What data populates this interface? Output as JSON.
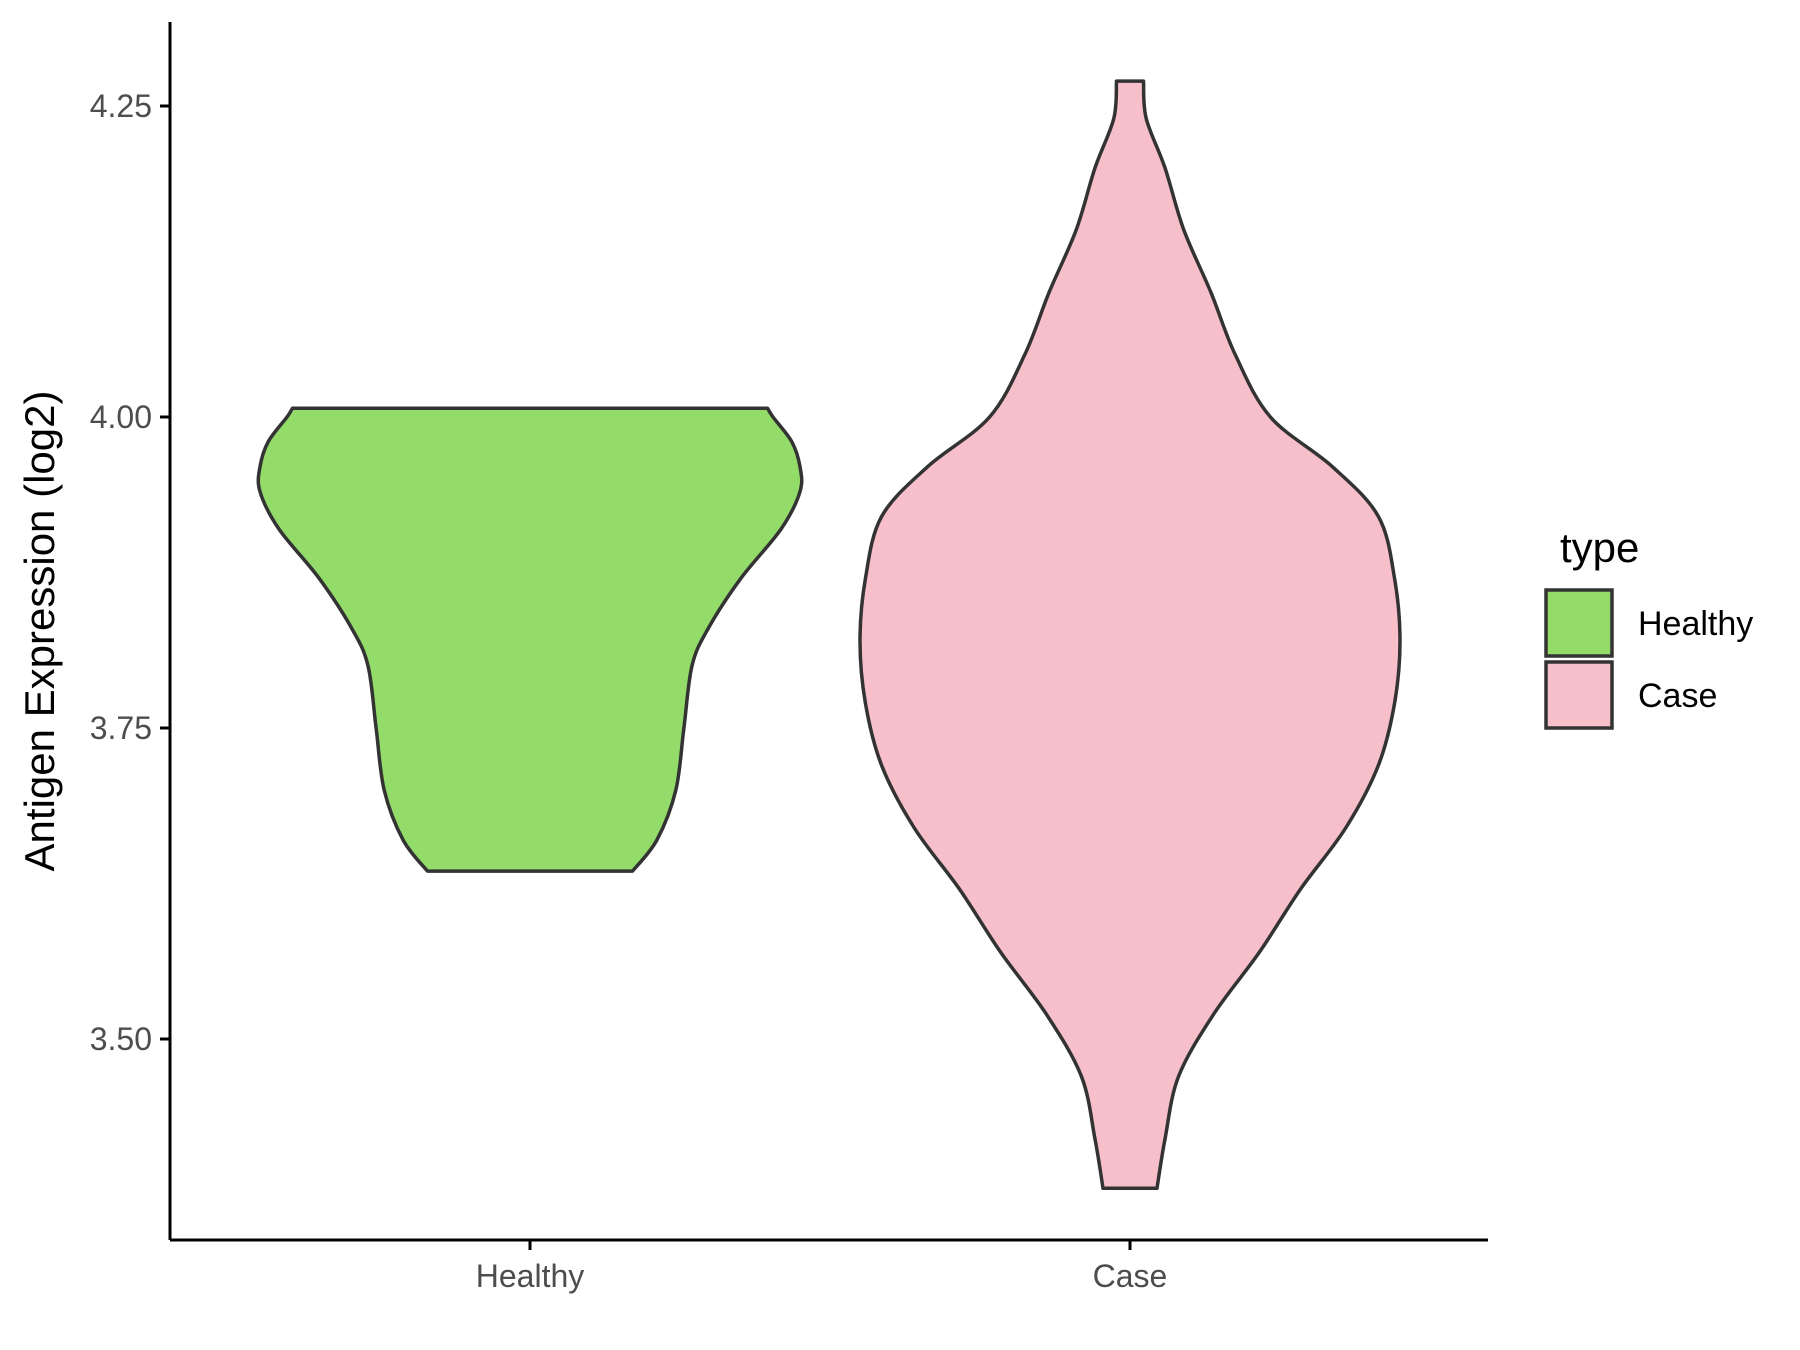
{
  "chart_data": {
    "type": "violin",
    "title": "",
    "xlabel": "",
    "ylabel": "Antigen Expression (log2)",
    "ylim": [
      3.34,
      4.32
    ],
    "yticks": [
      3.5,
      3.75,
      4.0,
      4.25
    ],
    "ytick_labels": [
      "3.50",
      "3.75",
      "4.00",
      "4.25"
    ],
    "categories": [
      "Healthy",
      "Case"
    ],
    "legend": {
      "title": "type",
      "position": "right",
      "entries": [
        "Healthy",
        "Case"
      ]
    },
    "grid": false,
    "series": [
      {
        "name": "Healthy",
        "color": "#93dc6a",
        "min": 3.635,
        "max": 4.007,
        "profile": [
          [
            3.635,
            0.38
          ],
          [
            3.66,
            0.47
          ],
          [
            3.7,
            0.54
          ],
          [
            3.75,
            0.57
          ],
          [
            3.8,
            0.6
          ],
          [
            3.83,
            0.66
          ],
          [
            3.87,
            0.78
          ],
          [
            3.91,
            0.93
          ],
          [
            3.94,
            1.0
          ],
          [
            3.96,
            1.0
          ],
          [
            3.98,
            0.97
          ],
          [
            4.0,
            0.9
          ],
          [
            4.007,
            0.88
          ]
        ]
      },
      {
        "name": "Case",
        "color": "#f7bfca",
        "min": 3.38,
        "max": 4.27,
        "profile": [
          [
            3.38,
            0.1
          ],
          [
            3.42,
            0.13
          ],
          [
            3.47,
            0.18
          ],
          [
            3.52,
            0.31
          ],
          [
            3.57,
            0.48
          ],
          [
            3.62,
            0.63
          ],
          [
            3.67,
            0.8
          ],
          [
            3.72,
            0.92
          ],
          [
            3.77,
            0.98
          ],
          [
            3.82,
            1.0
          ],
          [
            3.87,
            0.98
          ],
          [
            3.92,
            0.92
          ],
          [
            3.96,
            0.75
          ],
          [
            4.0,
            0.52
          ],
          [
            4.05,
            0.39
          ],
          [
            4.1,
            0.3
          ],
          [
            4.15,
            0.2
          ],
          [
            4.2,
            0.13
          ],
          [
            4.24,
            0.06
          ],
          [
            4.27,
            0.05
          ]
        ]
      }
    ]
  }
}
